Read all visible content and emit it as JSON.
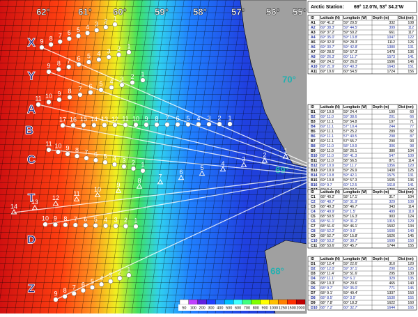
{
  "map": {
    "longitudes": [
      "62°",
      "61°",
      "60°",
      "59°",
      "58°",
      "57°",
      "56°",
      "55°"
    ],
    "latitudes": [
      "70°",
      "69°",
      "68°"
    ],
    "transects": [
      {
        "name": "X",
        "stations": [
          "1",
          "2",
          "3",
          "4",
          "5",
          "6",
          "7",
          "8",
          "9"
        ]
      },
      {
        "name": "Y",
        "stations": [
          "1",
          "2",
          "3",
          "4",
          "5",
          "6",
          "7",
          "8",
          "9"
        ]
      },
      {
        "name": "A",
        "stations": [
          "1",
          "2",
          "3",
          "4",
          "5",
          "6",
          "7",
          "8",
          "9",
          "10",
          "11"
        ]
      },
      {
        "name": "B",
        "stations": [
          "1",
          "2",
          "3",
          "4",
          "5",
          "6",
          "7",
          "8",
          "9",
          "10",
          "11",
          "12",
          "13",
          "14",
          "15",
          "16",
          "17"
        ]
      },
      {
        "name": "C",
        "stations": [
          "1",
          "2",
          "3",
          "4",
          "5",
          "6",
          "7",
          "8",
          "9",
          "10",
          "11"
        ]
      },
      {
        "name": "T",
        "stations": [
          "1",
          "2",
          "3",
          "4",
          "5",
          "6",
          "7",
          "8",
          "9",
          "10",
          "11",
          "12",
          "13",
          "14"
        ]
      },
      {
        "name": "D",
        "stations": [
          "1",
          "2",
          "3",
          "4",
          "5",
          "6",
          "7",
          "8",
          "9",
          "10"
        ]
      },
      {
        "name": "Z",
        "stations": [
          "1",
          "2",
          "3",
          "4",
          "5",
          "6",
          "7",
          "8",
          "9"
        ]
      }
    ],
    "colorbar": {
      "ticks": [
        50,
        100,
        200,
        300,
        400,
        500,
        600,
        700,
        800,
        900,
        1000,
        1250,
        1500,
        2000
      ],
      "colors": [
        "#ffffff",
        "#c040ff",
        "#6020e0",
        "#2040ff",
        "#2080ff",
        "#00c0ff",
        "#40ffff",
        "#40ff80",
        "#80ff00",
        "#ffff00",
        "#ffc000",
        "#ff8000",
        "#ff3000",
        "#c00000"
      ]
    }
  },
  "header": {
    "title": "Arctic Station:",
    "position": "69° 12.0'N, 53° 34.2'W"
  },
  "tables": [
    {
      "columns": [
        "ID",
        "Latitude (N)",
        "Longitude (W)",
        "Depth (m)",
        "Dist (nm)"
      ],
      "rows": [
        [
          "A1",
          "69° 41.2'",
          "59° 29.5'",
          "332",
          "108"
        ],
        [
          "A2",
          "69° 38.3'",
          "59° 44.5'",
          "399",
          "112"
        ],
        [
          "A3",
          "69° 37.2'",
          "59° 59.2'",
          "661",
          "117"
        ],
        [
          "A4",
          "69° 35.0'",
          "59° 13.8'",
          "1047",
          "122"
        ],
        [
          "A5",
          "69° 32.9'",
          "59° 28.3'",
          "1112",
          "126"
        ],
        [
          "A6",
          "69° 30.7'",
          "59° 42.8'",
          "1380",
          "131"
        ],
        [
          "A7",
          "69° 28.5'",
          "59° 57.3'",
          "1478",
          "136"
        ],
        [
          "A8",
          "69° 26.3'",
          "60° 11.7'",
          "1573",
          "141"
        ],
        [
          "A9",
          "69° 24.1'",
          "60° 26.0'",
          "1596",
          "146"
        ],
        [
          "A10",
          "69° 21.9'",
          "60° 40.3'",
          "1643",
          "151"
        ],
        [
          "A11",
          "69° 19.6'",
          "60° 54.5'",
          "1724",
          "156"
        ]
      ]
    },
    {
      "columns": [
        "ID",
        "Latitude (N)",
        "Longitude (W)",
        "Depth (m)",
        "Dist (nm)"
      ],
      "rows": [
        [
          "B1",
          "69° 10.9",
          "59° 24.4",
          "199",
          "60"
        ],
        [
          "B2",
          "69° 11.0",
          "59° 38.6",
          "201",
          "66"
        ],
        [
          "B3",
          "69° 11.1",
          "59° 54.8",
          "197",
          "71"
        ],
        [
          "B4",
          "69° 11.1",
          "57° 10.4",
          "244",
          "77"
        ],
        [
          "B5",
          "69° 11.1",
          "57° 25.2",
          "289",
          "82"
        ],
        [
          "B6",
          "69° 11.1",
          "57° 40.5",
          "298",
          "87"
        ],
        [
          "B7",
          "69° 11.1",
          "57° 55.7",
          "290",
          "93"
        ],
        [
          "B8",
          "69° 11.0",
          "58° 10.9",
          "306",
          "98"
        ],
        [
          "B9",
          "69° 11.0",
          "58° 26.1",
          "380",
          "104"
        ],
        [
          "B10",
          "69° 11.0",
          "58° 41.3",
          "547",
          "109"
        ],
        [
          "B11",
          "69° 11.0",
          "58° 56.5",
          "871",
          "114"
        ],
        [
          "B12",
          "69° 10.9",
          "59° 11.7",
          "1356",
          "120"
        ],
        [
          "B13",
          "69° 10.9",
          "59° 26.9",
          "1430",
          "125"
        ],
        [
          "B14",
          "69° 10.8",
          "59° 42.1",
          "1575",
          "131"
        ],
        [
          "B15",
          "69° 10.8",
          "59° 57.3",
          "1605",
          "136"
        ],
        [
          "B16",
          "69° 9.7",
          "60° 12.5",
          "1618",
          "141"
        ],
        [
          "B17",
          "69° 9.4",
          "60° 27.6",
          "1709",
          "147"
        ]
      ]
    },
    {
      "columns": [
        "ID",
        "Latitude (N)",
        "Longitude (W)",
        "Depth (m)",
        "Dist (nm)"
      ],
      "rows": [
        [
          "C1",
          "68° 49.2'",
          "58° 17.1'",
          "317",
          "104"
        ],
        [
          "C2",
          "68° 48.7'",
          "58° 31.9'",
          "329",
          "109"
        ],
        [
          "C3",
          "68° 49.3'",
          "58° 46.7'",
          "343",
          "114"
        ],
        [
          "C4",
          "68° 49.9'",
          "59° 1.5'",
          "499",
          "119"
        ],
        [
          "C5",
          "68° 50.5'",
          "59° 16.3'",
          "903",
          "124"
        ],
        [
          "C6",
          "68° 51.1'",
          "59° 31.2'",
          "1315",
          "129"
        ],
        [
          "C7",
          "68° 51.6'",
          "59° 46.1'",
          "1502",
          "134"
        ],
        [
          "C8",
          "68° 52.2'",
          "60° 0.9'",
          "1600",
          "140"
        ],
        [
          "C9",
          "68° 52.7'",
          "60° 15.8'",
          "1626",
          "145"
        ],
        [
          "C10",
          "68° 53.2'",
          "60° 30.7'",
          "1699",
          "150"
        ],
        [
          "C11",
          "68° 53.6'",
          "60° 45.7'",
          "1744",
          "155"
        ]
      ]
    },
    {
      "columns": [
        "ID",
        "Latitude (N)",
        "Longitude (W)",
        "Depth (m)",
        "Dist (nm)"
      ],
      "rows": [
        [
          "D1",
          "68° 12.4'",
          "59° 22.6'",
          "310",
          "120"
        ],
        [
          "D2",
          "68° 12.0'",
          "59° 37.1'",
          "290",
          "125"
        ],
        [
          "D3",
          "68° 11.4'",
          "59° 51.6'",
          "295",
          "130"
        ],
        [
          "D4",
          "68° 11.1'",
          "59° 6.1'",
          "329",
          "135"
        ],
        [
          "D5",
          "68° 10.3'",
          "59° 20.6'",
          "465",
          "140"
        ],
        [
          "D6",
          "68° 9.7'",
          "59° 35.0'",
          "771",
          "145"
        ],
        [
          "D7",
          "68° 9.1'",
          "59° 49.4'",
          "1337",
          "150"
        ],
        [
          "D8",
          "68° 8.5'",
          "60° 3.9'",
          "1530",
          "155"
        ],
        [
          "D9",
          "68° 7.8'",
          "60° 18.3'",
          "1622",
          "160"
        ],
        [
          "D10",
          "68° 7.2'",
          "60° 32.7'",
          "1644",
          "165"
        ]
      ]
    }
  ]
}
